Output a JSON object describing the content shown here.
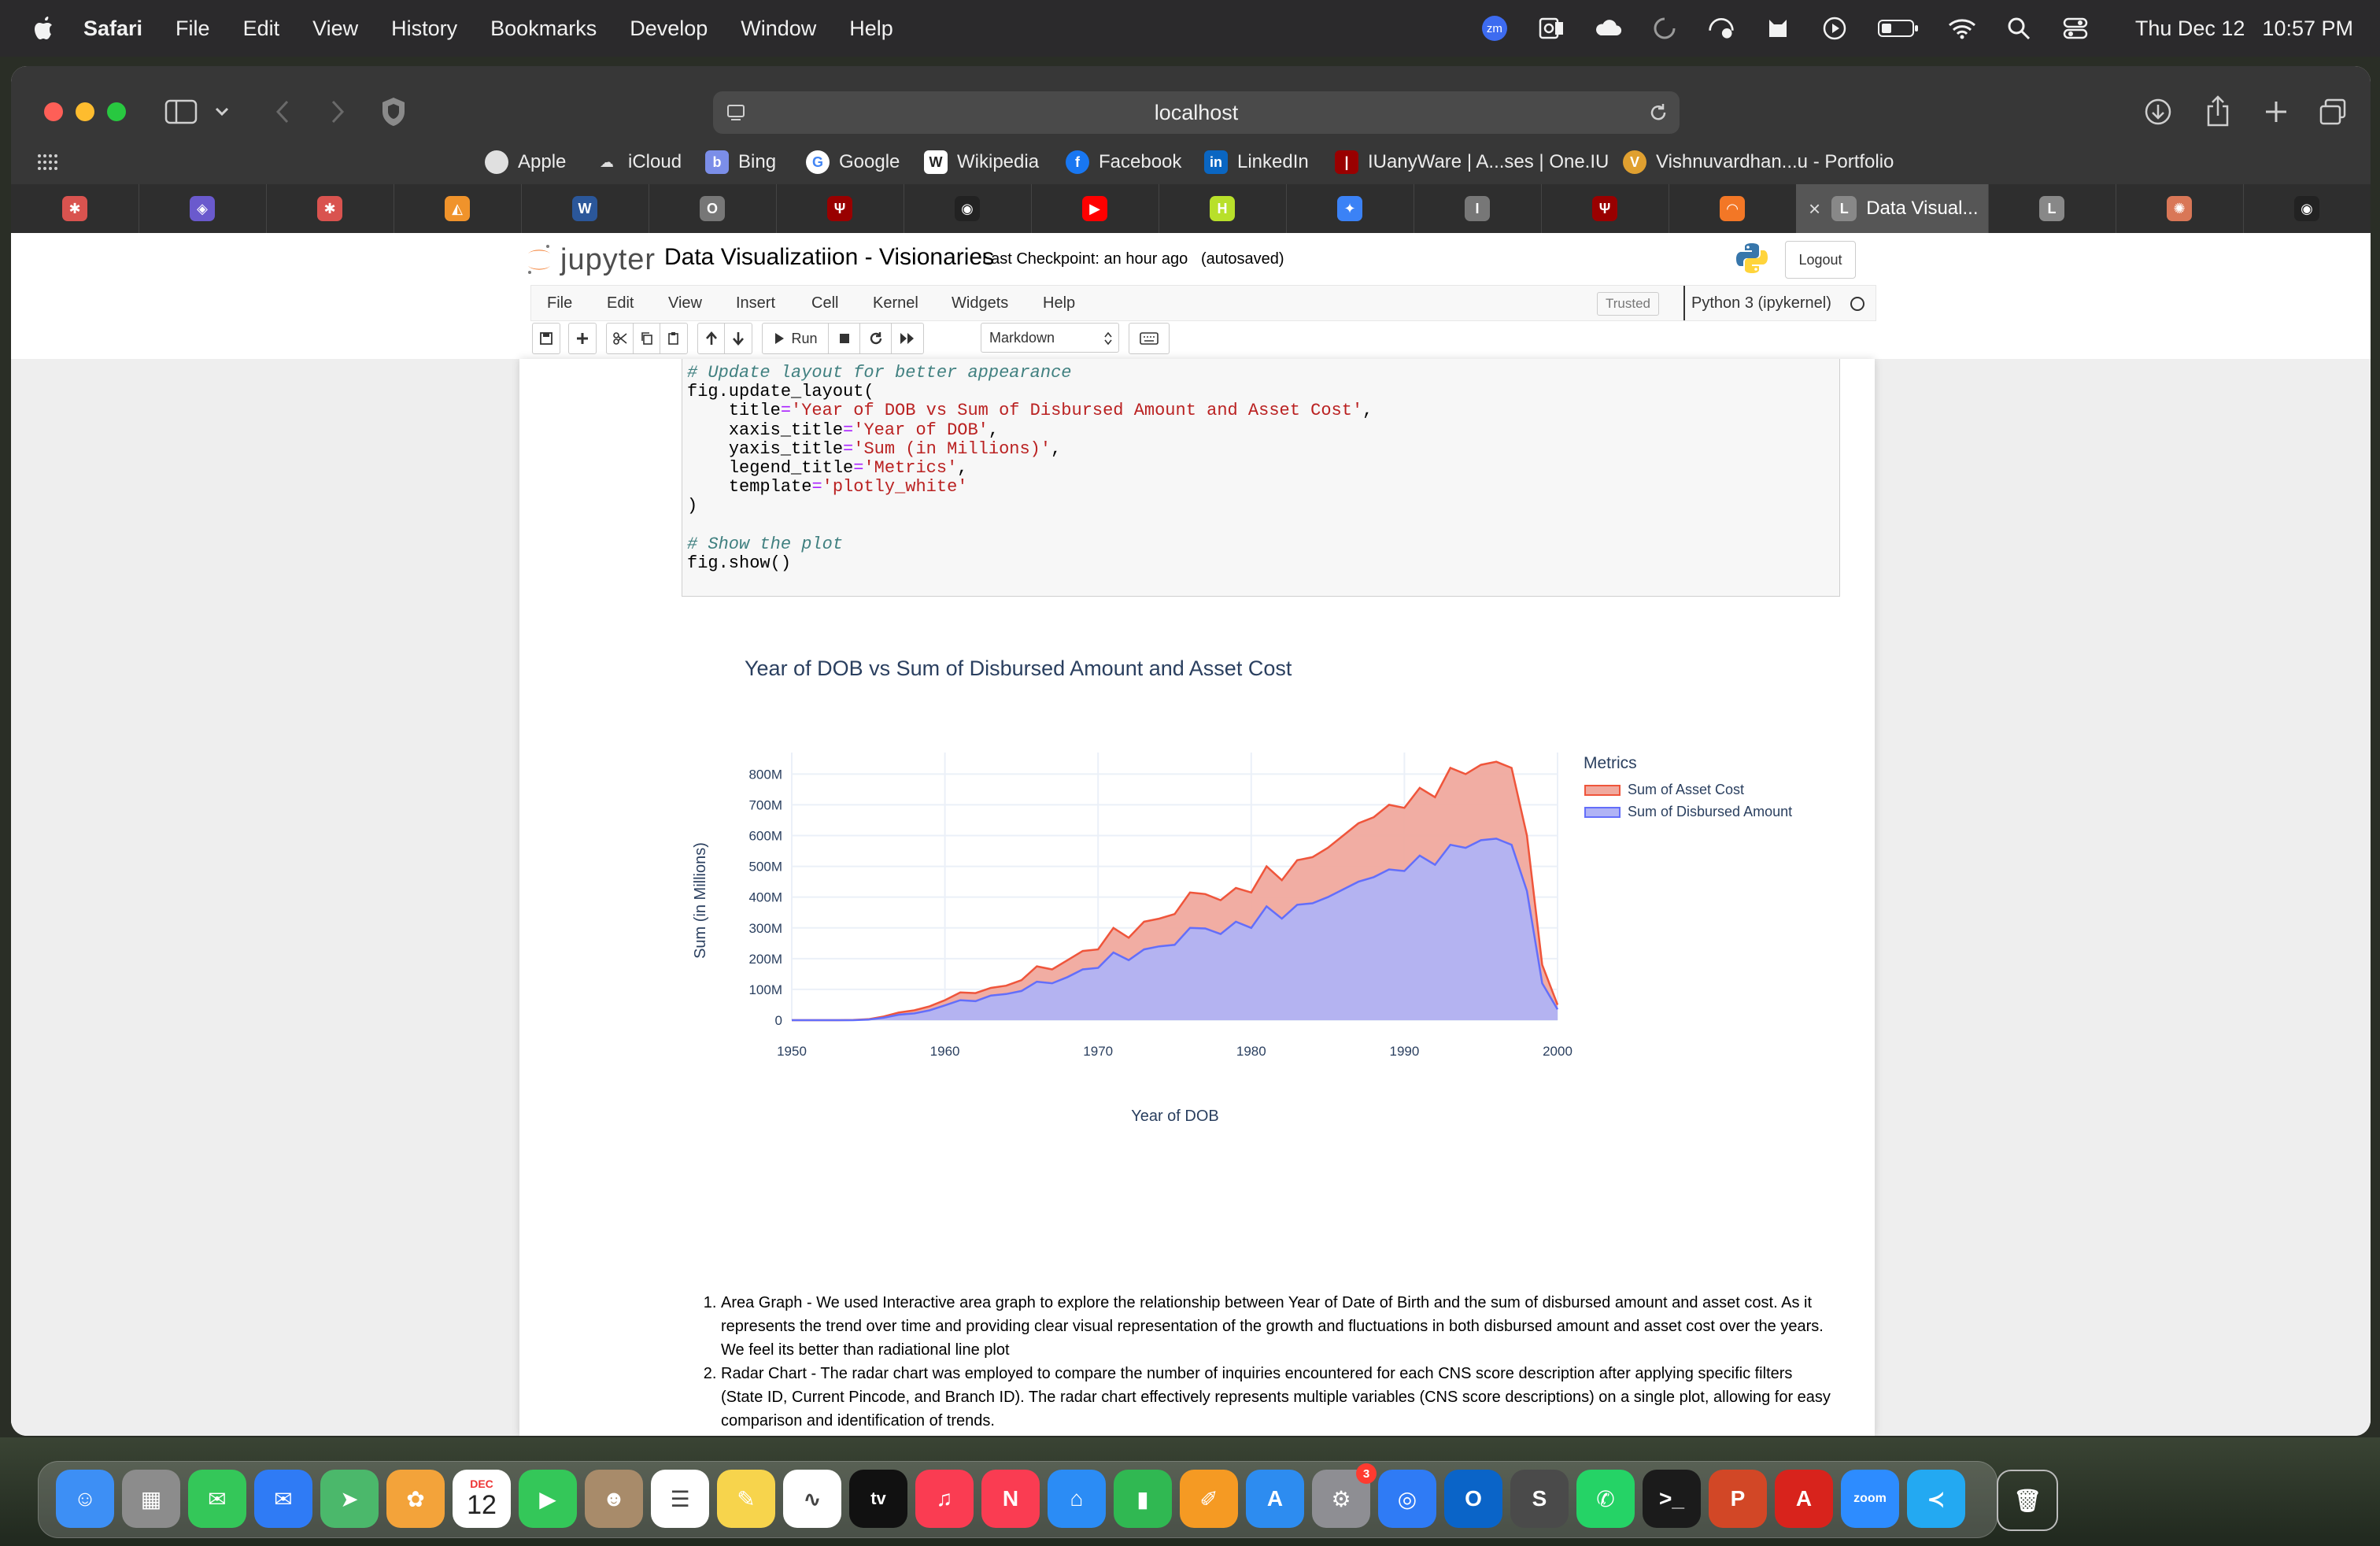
{
  "menubar": {
    "items": [
      "Safari",
      "File",
      "Edit",
      "View",
      "History",
      "Bookmarks",
      "Develop",
      "Window",
      "Help"
    ],
    "zoom_badge": "zm",
    "clock_day": "Thu Dec 12",
    "clock_time": "10:57 PM"
  },
  "browser": {
    "url": "localhost",
    "favorites": [
      "Apple",
      "iCloud",
      "Bing",
      "Google",
      "Wikipedia",
      "Facebook",
      "LinkedIn",
      "IUanyWare | A...ses | One.IU",
      "Vishnuvardhan...u - Portfolio"
    ],
    "tabs": [
      {
        "icon_glyph": "✱",
        "color": "#d9534f"
      },
      {
        "icon_glyph": "◈",
        "color": "#6a5acd"
      },
      {
        "icon_glyph": "✱",
        "color": "#d9534f"
      },
      {
        "icon_glyph": "◭",
        "color": "#f0932b"
      },
      {
        "icon_glyph": "W",
        "color": "#2b579a"
      },
      {
        "icon_glyph": "O",
        "color": "#777777"
      },
      {
        "icon_glyph": "Ψ",
        "color": "#990000"
      },
      {
        "icon_glyph": "◉",
        "color": "#222222"
      },
      {
        "icon_glyph": "▶",
        "color": "#ff0000"
      },
      {
        "icon_glyph": "H",
        "color": "#b8e02a"
      },
      {
        "icon_glyph": "✦",
        "color": "#3b82f6"
      },
      {
        "icon_glyph": "I",
        "color": "#777777"
      },
      {
        "icon_glyph": "Ψ",
        "color": "#990000"
      },
      {
        "icon_glyph": "◠",
        "color": "#f37726"
      },
      {
        "icon_glyph": "L",
        "color": "#888888",
        "label": "Data Visual...",
        "active": true
      },
      {
        "icon_glyph": "L",
        "color": "#888888"
      },
      {
        "icon_glyph": "✺",
        "color": "#d97757"
      },
      {
        "icon_glyph": "◉",
        "color": "#222222"
      }
    ]
  },
  "jupyter": {
    "logo_text": "jupyter",
    "notebook_title": "Data Visualizatiion - Visionaries",
    "checkpoint": "Last Checkpoint: an hour ago",
    "autosaved": "(autosaved)",
    "logout": "Logout",
    "menu": [
      "File",
      "Edit",
      "View",
      "Insert",
      "Cell",
      "Kernel",
      "Widgets",
      "Help"
    ],
    "trusted": "Trusted",
    "kernel": "Python 3 (ipykernel)",
    "run_label": "Run",
    "cell_type": "Markdown"
  },
  "code": {
    "comment1": "# Update layout for better appearance",
    "call": "fig.update_layout(",
    "args": [
      {
        "key": "title",
        "value": "'Year of DOB vs Sum of Disbursed Amount and Asset Cost'"
      },
      {
        "key": "xaxis_title",
        "value": "'Year of DOB'"
      },
      {
        "key": "yaxis_title",
        "value": "'Sum (in Millions)'"
      },
      {
        "key": "legend_title",
        "value": "'Metrics'"
      },
      {
        "key": "template",
        "value": "'plotly_white'"
      }
    ],
    "close": ")",
    "comment2": "# Show the plot",
    "show": "fig.show()"
  },
  "chart_data": {
    "type": "area",
    "title": "Year of DOB vs Sum of Disbursed Amount and Asset Cost",
    "xlabel": "Year of DOB",
    "ylabel": "Sum (in Millions)",
    "legend_title": "Metrics",
    "xlim": [
      1950,
      2000
    ],
    "ylim": [
      0,
      870
    ],
    "x_ticks": [
      1950,
      1960,
      1970,
      1980,
      1990,
      2000
    ],
    "x_tick_labels": [
      "1950",
      "1960",
      "1970",
      "1980",
      "1990",
      "2000"
    ],
    "y_ticks": [
      0,
      100,
      200,
      300,
      400,
      500,
      600,
      700,
      800
    ],
    "y_tick_labels": [
      "0",
      "100M",
      "200M",
      "300M",
      "400M",
      "500M",
      "600M",
      "700M",
      "800M"
    ],
    "x": [
      1950,
      1951,
      1952,
      1953,
      1954,
      1955,
      1956,
      1957,
      1958,
      1959,
      1960,
      1961,
      1962,
      1963,
      1964,
      1965,
      1966,
      1967,
      1968,
      1969,
      1970,
      1971,
      1972,
      1973,
      1974,
      1975,
      1976,
      1977,
      1978,
      1979,
      1980,
      1981,
      1982,
      1983,
      1984,
      1985,
      1986,
      1987,
      1988,
      1989,
      1990,
      1991,
      1992,
      1993,
      1994,
      1995,
      1996,
      1997,
      1998,
      1999,
      2000
    ],
    "series": [
      {
        "name": "Sum of Asset Cost",
        "color": "#ef553b",
        "fill": "#f0a99e",
        "values": [
          0,
          0,
          0,
          0,
          0.5,
          3,
          12,
          25,
          32,
          45,
          65,
          90,
          88,
          105,
          112,
          130,
          175,
          165,
          195,
          225,
          230,
          300,
          268,
          320,
          330,
          345,
          415,
          410,
          390,
          430,
          415,
          500,
          455,
          520,
          530,
          560,
          600,
          640,
          660,
          700,
          690,
          755,
          725,
          820,
          800,
          830,
          840,
          820,
          600,
          180,
          50
        ]
      },
      {
        "name": "Sum of Disbursed Amount",
        "color": "#636efa",
        "fill": "#b0b3f5",
        "values": [
          0,
          0,
          0,
          0,
          0,
          2,
          8,
          18,
          22,
          32,
          48,
          65,
          62,
          80,
          85,
          95,
          125,
          120,
          140,
          165,
          170,
          220,
          195,
          230,
          240,
          245,
          300,
          298,
          280,
          320,
          300,
          370,
          330,
          375,
          380,
          400,
          425,
          450,
          465,
          490,
          485,
          535,
          505,
          570,
          560,
          585,
          590,
          570,
          420,
          120,
          35
        ]
      }
    ]
  },
  "markdown": {
    "items": [
      "Area Graph - We used Interactive area graph to explore the relationship between Year of Date of Birth and the sum of disbursed amount and asset cost. As it represents the trend over time and providing clear visual representation of the growth and fluctuations in both disbursed amount and asset cost over the years. We feel its better than radiational line plot",
      "Radar Chart - The radar chart was employed to compare the number of inquiries encountered for each CNS score description after applying specific filters (State ID, Current Pincode, and Branch ID). The radar chart effectively represents multiple variables (CNS score descriptions) on a single plot, allowing for easy comparison and identification of trends."
    ]
  },
  "dock": {
    "calendar_month": "DEC",
    "calendar_day": "12",
    "tv_label": "tv",
    "zoom_label": "zoom",
    "settings_badge": "3",
    "apps": [
      {
        "name": "finder",
        "color": "#3d8ff5",
        "glyph": "☺"
      },
      {
        "name": "launchpad",
        "color": "#8c8c8c",
        "glyph": "▦"
      },
      {
        "name": "messages",
        "color": "#34c759",
        "glyph": "✉"
      },
      {
        "name": "mail",
        "color": "#2f7bf5",
        "glyph": "✉"
      },
      {
        "name": "maps",
        "color": "#4bb86b",
        "glyph": "➤"
      },
      {
        "name": "photos",
        "color": "#f3a33a",
        "glyph": "✿"
      },
      {
        "name": "calendar",
        "color": "#ffffff",
        "glyph": ""
      },
      {
        "name": "facetime",
        "color": "#34c759",
        "glyph": "▶"
      },
      {
        "name": "contacts",
        "color": "#a88b6a",
        "glyph": "☻"
      },
      {
        "name": "reminders",
        "color": "#ffffff",
        "glyph": "☰"
      },
      {
        "name": "notes",
        "color": "#f7d44c",
        "glyph": "✎"
      },
      {
        "name": "freeform",
        "color": "#ffffff",
        "glyph": "∿"
      },
      {
        "name": "tv",
        "color": "#111111",
        "glyph": ""
      },
      {
        "name": "music",
        "color": "#fa3c52",
        "glyph": "♫"
      },
      {
        "name": "news",
        "color": "#fa3c52",
        "glyph": "N"
      },
      {
        "name": "keynote",
        "color": "#2b8cf5",
        "glyph": "⌂"
      },
      {
        "name": "numbers",
        "color": "#30b852",
        "glyph": "▮"
      },
      {
        "name": "pages",
        "color": "#f59a23",
        "glyph": "✐"
      },
      {
        "name": "app-store",
        "color": "#2d8cf0",
        "glyph": "A"
      },
      {
        "name": "system-settings",
        "color": "#8e8e93",
        "glyph": "⚙"
      },
      {
        "name": "safari",
        "color": "#2f7bf5",
        "glyph": "◎"
      },
      {
        "name": "outlook",
        "color": "#0a64c8",
        "glyph": "O"
      },
      {
        "name": "sublime-text",
        "color": "#4a4a4a",
        "glyph": "S"
      },
      {
        "name": "whatsapp",
        "color": "#25d366",
        "glyph": "✆"
      },
      {
        "name": "terminal",
        "color": "#1b1b1b",
        "glyph": ">_"
      },
      {
        "name": "powerpoint",
        "color": "#d24726",
        "glyph": "P"
      },
      {
        "name": "acrobat",
        "color": "#d8231c",
        "glyph": "A"
      },
      {
        "name": "zoom",
        "color": "#2d8cff",
        "glyph": ""
      },
      {
        "name": "vscode",
        "color": "#23a9f2",
        "glyph": "≺"
      }
    ]
  }
}
